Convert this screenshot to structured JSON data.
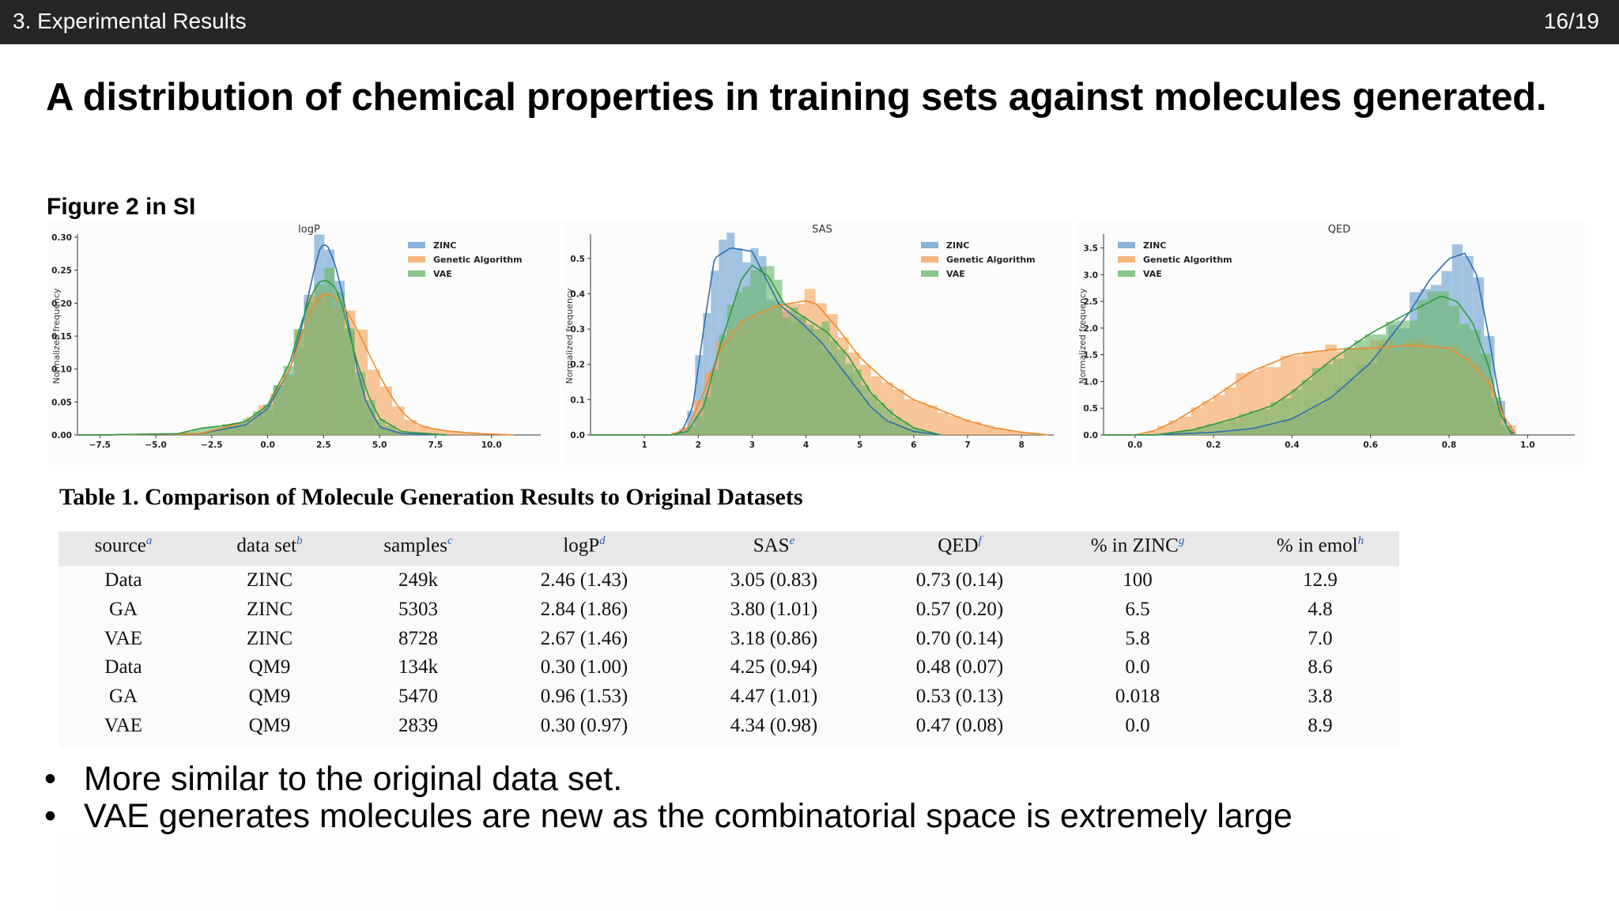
{
  "header": {
    "section": "3. Experimental Results",
    "page": "16/19"
  },
  "title": "A distribution of chemical properties in training sets against molecules generated.",
  "figure_caption": "Figure 2 in SI",
  "colors": {
    "zinc": "#6a9fcf",
    "ga": "#f5a45c",
    "vae": "#6cb86c",
    "zinc_line": "#2c6fb0",
    "ga_line": "#f08a2c",
    "vae_line": "#2e9a3e"
  },
  "chart_data": [
    {
      "type": "area",
      "title": "logP",
      "ylabel": "Normalized frequency",
      "xlim": [
        -8.5,
        12.2
      ],
      "ylim": [
        0,
        0.3
      ],
      "xticks": [
        "−7.5",
        "−5.0",
        "−2.5",
        "0.0",
        "2.5",
        "5.0",
        "7.5",
        "10.0"
      ],
      "xtick_values": [
        -7.5,
        -5.0,
        -2.5,
        0.0,
        2.5,
        5.0,
        7.5,
        10.0
      ],
      "yticks": [
        "0.00",
        "0.05",
        "0.10",
        "0.15",
        "0.20",
        "0.25",
        "0.30"
      ],
      "ytick_values": [
        0,
        0.05,
        0.1,
        0.15,
        0.2,
        0.25,
        0.3
      ],
      "legend": [
        "ZINC",
        "Genetic Algorithm",
        "VAE"
      ],
      "legend_position": "top-right",
      "series": [
        {
          "name": "ZINC",
          "x": [
            -7.5,
            -3,
            -1,
            0,
            1,
            1.5,
            2,
            2.3,
            2.5,
            2.7,
            3,
            3.3,
            3.6,
            4,
            4.4,
            5,
            6,
            8
          ],
          "values": [
            0,
            0.002,
            0.015,
            0.04,
            0.1,
            0.16,
            0.24,
            0.28,
            0.29,
            0.285,
            0.26,
            0.22,
            0.17,
            0.1,
            0.05,
            0.012,
            0.002,
            0
          ]
        },
        {
          "name": "Genetic Algorithm",
          "x": [
            -7.5,
            -3,
            -1,
            0,
            1,
            1.5,
            2,
            2.5,
            3,
            3.5,
            4,
            4.5,
            5,
            5.5,
            6,
            6.5,
            7,
            8,
            9.5,
            11
          ],
          "values": [
            0,
            0.002,
            0.02,
            0.045,
            0.1,
            0.15,
            0.195,
            0.215,
            0.21,
            0.19,
            0.16,
            0.125,
            0.09,
            0.06,
            0.035,
            0.02,
            0.012,
            0.006,
            0.002,
            0
          ]
        },
        {
          "name": "VAE",
          "x": [
            -7.5,
            -4,
            -3,
            -2,
            -1,
            0,
            1,
            1.5,
            2,
            2.3,
            2.6,
            3,
            3.3,
            3.6,
            4,
            4.5,
            5,
            6,
            8
          ],
          "values": [
            0,
            0.002,
            0.01,
            0.014,
            0.02,
            0.045,
            0.11,
            0.17,
            0.215,
            0.232,
            0.235,
            0.225,
            0.2,
            0.16,
            0.11,
            0.06,
            0.025,
            0.005,
            0
          ]
        }
      ]
    },
    {
      "type": "area",
      "title": "SAS",
      "ylabel": "Normalized frequency",
      "xlim": [
        0.0,
        8.6
      ],
      "ylim": [
        0,
        0.56
      ],
      "xticks": [
        "1",
        "2",
        "3",
        "4",
        "5",
        "6",
        "7",
        "8"
      ],
      "xtick_values": [
        1,
        2,
        3,
        4,
        5,
        6,
        7,
        8
      ],
      "yticks": [
        "0.0",
        "0.1",
        "0.2",
        "0.3",
        "0.4",
        "0.5"
      ],
      "ytick_values": [
        0,
        0.1,
        0.2,
        0.3,
        0.4,
        0.5
      ],
      "legend": [
        "ZINC",
        "Genetic Algorithm",
        "VAE"
      ],
      "legend_position": "top-right",
      "series": [
        {
          "name": "ZINC",
          "x": [
            1.5,
            1.7,
            1.9,
            2.1,
            2.3,
            2.6,
            3.0,
            3.2,
            3.5,
            3.9,
            4.3,
            4.8,
            5.2,
            5.5,
            6,
            6.5
          ],
          "values": [
            0,
            0.01,
            0.08,
            0.3,
            0.5,
            0.53,
            0.52,
            0.46,
            0.37,
            0.32,
            0.26,
            0.16,
            0.08,
            0.04,
            0.01,
            0
          ]
        },
        {
          "name": "Genetic Algorithm",
          "x": [
            1.5,
            1.8,
            2.1,
            2.4,
            2.8,
            3.2,
            3.6,
            4.0,
            4.2,
            4.6,
            5.0,
            5.5,
            6.0,
            6.5,
            7.0,
            7.5,
            8.0,
            8.5
          ],
          "values": [
            0,
            0.02,
            0.12,
            0.24,
            0.32,
            0.35,
            0.37,
            0.38,
            0.37,
            0.3,
            0.22,
            0.15,
            0.1,
            0.07,
            0.04,
            0.02,
            0.008,
            0
          ]
        },
        {
          "name": "VAE",
          "x": [
            1.5,
            1.8,
            2.1,
            2.4,
            2.8,
            3.0,
            3.3,
            3.6,
            4.0,
            4.4,
            4.8,
            5.2,
            5.6,
            6.0,
            6.5
          ],
          "values": [
            0,
            0.01,
            0.08,
            0.25,
            0.44,
            0.48,
            0.45,
            0.37,
            0.33,
            0.29,
            0.22,
            0.12,
            0.06,
            0.02,
            0
          ]
        }
      ]
    },
    {
      "type": "area",
      "title": "QED",
      "ylabel": "Normalized frequency",
      "xlim": [
        -0.08,
        1.12
      ],
      "ylim": [
        0,
        3.7
      ],
      "xticks": [
        "0.0",
        "0.2",
        "0.4",
        "0.6",
        "0.8",
        "1.0"
      ],
      "xtick_values": [
        0,
        0.2,
        0.4,
        0.6,
        0.8,
        1.0
      ],
      "yticks": [
        "0.0",
        "0.5",
        "1.0",
        "1.5",
        "2.0",
        "2.5",
        "3.0",
        "3.5"
      ],
      "ytick_values": [
        0,
        0.5,
        1.0,
        1.5,
        2.0,
        2.5,
        3.0,
        3.5
      ],
      "legend": [
        "ZINC",
        "Genetic Algorithm",
        "VAE"
      ],
      "legend_position": "top-left",
      "series": [
        {
          "name": "ZINC",
          "x": [
            0.05,
            0.2,
            0.3,
            0.4,
            0.5,
            0.6,
            0.7,
            0.75,
            0.8,
            0.84,
            0.87,
            0.9,
            0.93,
            0.95,
            0.97
          ],
          "values": [
            0,
            0.05,
            0.12,
            0.3,
            0.7,
            1.35,
            2.3,
            2.9,
            3.3,
            3.4,
            3.0,
            1.9,
            0.6,
            0.1,
            0
          ]
        },
        {
          "name": "Genetic Algorithm",
          "x": [
            0.0,
            0.05,
            0.1,
            0.2,
            0.3,
            0.4,
            0.5,
            0.6,
            0.7,
            0.8,
            0.85,
            0.9,
            0.94,
            0.97
          ],
          "values": [
            0,
            0.08,
            0.25,
            0.7,
            1.2,
            1.5,
            1.6,
            1.62,
            1.68,
            1.62,
            1.4,
            1.0,
            0.35,
            0
          ]
        },
        {
          "name": "VAE",
          "x": [
            0.05,
            0.15,
            0.25,
            0.35,
            0.4,
            0.5,
            0.6,
            0.7,
            0.78,
            0.82,
            0.86,
            0.9,
            0.93,
            0.96
          ],
          "values": [
            0,
            0.1,
            0.3,
            0.55,
            0.8,
            1.4,
            1.9,
            2.3,
            2.6,
            2.5,
            2.1,
            1.3,
            0.4,
            0
          ]
        }
      ]
    },
    {
      "type": "table",
      "title": "Table 1. Comparison of Molecule Generation Results to Original Datasets",
      "columns": [
        {
          "label": "source",
          "note": "a"
        },
        {
          "label": "data set",
          "note": "b"
        },
        {
          "label": "samples",
          "note": "c"
        },
        {
          "label": "logP",
          "note": "d"
        },
        {
          "label": "SAS",
          "note": "e"
        },
        {
          "label": "QED",
          "note": "f"
        },
        {
          "label": "% in ZINC",
          "note": "g"
        },
        {
          "label": "% in emol",
          "note": "h"
        }
      ],
      "rows": [
        [
          "Data",
          "ZINC",
          "249k",
          "2.46 (1.43)",
          "3.05 (0.83)",
          "0.73 (0.14)",
          "100",
          "12.9"
        ],
        [
          "GA",
          "ZINC",
          "5303",
          "2.84 (1.86)",
          "3.80 (1.01)",
          "0.57 (0.20)",
          "6.5",
          "4.8"
        ],
        [
          "VAE",
          "ZINC",
          "8728",
          "2.67 (1.46)",
          "3.18 (0.86)",
          "0.70 (0.14)",
          "5.8",
          "7.0"
        ],
        [
          "Data",
          "QM9",
          "134k",
          "0.30 (1.00)",
          "4.25 (0.94)",
          "0.48 (0.07)",
          "0.0",
          "8.6"
        ],
        [
          "GA",
          "QM9",
          "5470",
          "0.96 (1.53)",
          "4.47 (1.01)",
          "0.53 (0.13)",
          "0.018",
          "3.8"
        ],
        [
          "VAE",
          "QM9",
          "2839",
          "0.30 (0.97)",
          "4.34 (0.98)",
          "0.47 (0.08)",
          "0.0",
          "8.9"
        ]
      ]
    }
  ],
  "bullet_marker": "•",
  "bullets": [
    "More similar to the original data set.",
    "VAE generates molecules are new as the combinatorial space is extremely large"
  ]
}
